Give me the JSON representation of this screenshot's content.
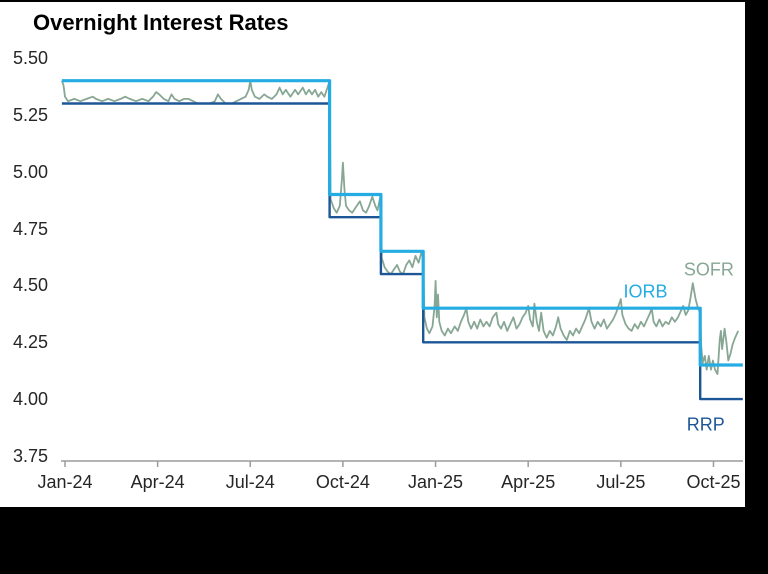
{
  "title": "Overnight Interest Rates",
  "colors": {
    "background": "#000000",
    "panel": "#FFFFFF",
    "title_text": "#000000",
    "tick_text": "#262626",
    "axis": "#9C9C9C",
    "sofr": "#87A794",
    "iorb": "#25ACE3",
    "rrp": "#1D5697"
  },
  "chart_data": {
    "type": "line",
    "title": "Overnight Interest Rates",
    "grid": false,
    "legend_position": "inline-labels",
    "x_epoch": "months since 2024-01-01",
    "x_range_months": [
      -0.1,
      22.0
    ],
    "x_tick_labels": [
      "Jan-24",
      "Apr-24",
      "Jul-24",
      "Oct-24",
      "Jan-25",
      "Apr-25",
      "Jul-25",
      "Oct-25"
    ],
    "x_tick_months": [
      0,
      3,
      6,
      9,
      12,
      15,
      18,
      21
    ],
    "ylim": [
      3.75,
      5.5
    ],
    "y_tick_labels": [
      "5.50",
      "5.25",
      "5.00",
      "4.75",
      "4.50",
      "4.25",
      "4.00",
      "3.75"
    ],
    "y_tick_values": [
      5.5,
      5.25,
      5.0,
      4.75,
      4.5,
      4.25,
      4.0,
      3.75
    ],
    "series": [
      {
        "name": "SOFR",
        "type": "line",
        "color": "#87A794",
        "stroke_width": 1.8,
        "points": [
          [
            -0.1,
            5.4
          ],
          [
            -0.05,
            5.38
          ],
          [
            0.0,
            5.33
          ],
          [
            0.1,
            5.31
          ],
          [
            0.3,
            5.32
          ],
          [
            0.5,
            5.31
          ],
          [
            0.7,
            5.32
          ],
          [
            0.9,
            5.33
          ],
          [
            1.0,
            5.32
          ],
          [
            1.2,
            5.31
          ],
          [
            1.4,
            5.32
          ],
          [
            1.6,
            5.31
          ],
          [
            1.8,
            5.32
          ],
          [
            1.95,
            5.33
          ],
          [
            2.1,
            5.32
          ],
          [
            2.3,
            5.31
          ],
          [
            2.5,
            5.32
          ],
          [
            2.7,
            5.31
          ],
          [
            2.85,
            5.33
          ],
          [
            2.95,
            5.35
          ],
          [
            3.05,
            5.34
          ],
          [
            3.2,
            5.32
          ],
          [
            3.35,
            5.31
          ],
          [
            3.45,
            5.34
          ],
          [
            3.55,
            5.32
          ],
          [
            3.7,
            5.31
          ],
          [
            3.85,
            5.32
          ],
          [
            4.0,
            5.32
          ],
          [
            4.15,
            5.31
          ],
          [
            4.3,
            5.3
          ],
          [
            4.5,
            5.3
          ],
          [
            4.7,
            5.3
          ],
          [
            4.85,
            5.31
          ],
          [
            4.95,
            5.34
          ],
          [
            5.05,
            5.32
          ],
          [
            5.2,
            5.3
          ],
          [
            5.4,
            5.3
          ],
          [
            5.55,
            5.31
          ],
          [
            5.7,
            5.32
          ],
          [
            5.85,
            5.33
          ],
          [
            5.95,
            5.36
          ],
          [
            6.0,
            5.4
          ],
          [
            6.05,
            5.36
          ],
          [
            6.15,
            5.33
          ],
          [
            6.3,
            5.32
          ],
          [
            6.45,
            5.34
          ],
          [
            6.55,
            5.33
          ],
          [
            6.7,
            5.32
          ],
          [
            6.85,
            5.34
          ],
          [
            6.95,
            5.37
          ],
          [
            7.05,
            5.34
          ],
          [
            7.15,
            5.36
          ],
          [
            7.3,
            5.33
          ],
          [
            7.45,
            5.36
          ],
          [
            7.55,
            5.34
          ],
          [
            7.7,
            5.37
          ],
          [
            7.8,
            5.34
          ],
          [
            7.9,
            5.36
          ],
          [
            8.0,
            5.34
          ],
          [
            8.1,
            5.36
          ],
          [
            8.2,
            5.33
          ],
          [
            8.3,
            5.35
          ],
          [
            8.4,
            5.33
          ],
          [
            8.5,
            5.37
          ],
          [
            8.57,
            5.4
          ],
          [
            8.6,
            4.88
          ],
          [
            8.7,
            4.84
          ],
          [
            8.8,
            4.82
          ],
          [
            8.9,
            4.85
          ],
          [
            8.97,
            4.97
          ],
          [
            9.0,
            5.04
          ],
          [
            9.05,
            4.92
          ],
          [
            9.1,
            4.85
          ],
          [
            9.2,
            4.83
          ],
          [
            9.3,
            4.82
          ],
          [
            9.45,
            4.85
          ],
          [
            9.55,
            4.87
          ],
          [
            9.65,
            4.83
          ],
          [
            9.75,
            4.82
          ],
          [
            9.85,
            4.85
          ],
          [
            9.95,
            4.89
          ],
          [
            10.05,
            4.85
          ],
          [
            10.12,
            4.83
          ],
          [
            10.18,
            4.87
          ],
          [
            10.23,
            4.9
          ],
          [
            10.26,
            4.62
          ],
          [
            10.35,
            4.58
          ],
          [
            10.45,
            4.56
          ],
          [
            10.55,
            4.55
          ],
          [
            10.65,
            4.57
          ],
          [
            10.75,
            4.59
          ],
          [
            10.85,
            4.56
          ],
          [
            10.95,
            4.55
          ],
          [
            11.05,
            4.59
          ],
          [
            11.15,
            4.61
          ],
          [
            11.25,
            4.58
          ],
          [
            11.35,
            4.63
          ],
          [
            11.45,
            4.6
          ],
          [
            11.55,
            4.65
          ],
          [
            11.6,
            4.62
          ],
          [
            11.64,
            4.36
          ],
          [
            11.72,
            4.31
          ],
          [
            11.8,
            4.29
          ],
          [
            11.9,
            4.32
          ],
          [
            11.97,
            4.41
          ],
          [
            12.0,
            4.52
          ],
          [
            12.04,
            4.36
          ],
          [
            12.08,
            4.46
          ],
          [
            12.12,
            4.34
          ],
          [
            12.2,
            4.3
          ],
          [
            12.3,
            4.28
          ],
          [
            12.4,
            4.31
          ],
          [
            12.5,
            4.29
          ],
          [
            12.62,
            4.32
          ],
          [
            12.72,
            4.3
          ],
          [
            12.82,
            4.34
          ],
          [
            12.92,
            4.37
          ],
          [
            13.0,
            4.4
          ],
          [
            13.06,
            4.34
          ],
          [
            13.15,
            4.31
          ],
          [
            13.25,
            4.34
          ],
          [
            13.35,
            4.31
          ],
          [
            13.45,
            4.35
          ],
          [
            13.55,
            4.32
          ],
          [
            13.65,
            4.34
          ],
          [
            13.75,
            4.32
          ],
          [
            13.85,
            4.36
          ],
          [
            13.97,
            4.38
          ],
          [
            14.03,
            4.33
          ],
          [
            14.12,
            4.31
          ],
          [
            14.22,
            4.34
          ],
          [
            14.32,
            4.3
          ],
          [
            14.42,
            4.33
          ],
          [
            14.52,
            4.36
          ],
          [
            14.62,
            4.31
          ],
          [
            14.72,
            4.33
          ],
          [
            14.82,
            4.36
          ],
          [
            14.92,
            4.38
          ],
          [
            15.0,
            4.41
          ],
          [
            15.06,
            4.35
          ],
          [
            15.15,
            4.32
          ],
          [
            15.2,
            4.42
          ],
          [
            15.28,
            4.34
          ],
          [
            15.35,
            4.3
          ],
          [
            15.42,
            4.38
          ],
          [
            15.5,
            4.3
          ],
          [
            15.6,
            4.27
          ],
          [
            15.7,
            4.3
          ],
          [
            15.8,
            4.28
          ],
          [
            15.9,
            4.32
          ],
          [
            15.97,
            4.36
          ],
          [
            16.05,
            4.31
          ],
          [
            16.15,
            4.28
          ],
          [
            16.25,
            4.26
          ],
          [
            16.35,
            4.3
          ],
          [
            16.45,
            4.28
          ],
          [
            16.55,
            4.31
          ],
          [
            16.65,
            4.29
          ],
          [
            16.75,
            4.32
          ],
          [
            16.85,
            4.35
          ],
          [
            16.97,
            4.4
          ],
          [
            17.05,
            4.34
          ],
          [
            17.15,
            4.31
          ],
          [
            17.25,
            4.34
          ],
          [
            17.35,
            4.32
          ],
          [
            17.45,
            4.35
          ],
          [
            17.55,
            4.31
          ],
          [
            17.65,
            4.33
          ],
          [
            17.75,
            4.35
          ],
          [
            17.85,
            4.38
          ],
          [
            17.95,
            4.42
          ],
          [
            18.0,
            4.44
          ],
          [
            18.05,
            4.37
          ],
          [
            18.15,
            4.33
          ],
          [
            18.25,
            4.31
          ],
          [
            18.35,
            4.3
          ],
          [
            18.45,
            4.33
          ],
          [
            18.55,
            4.31
          ],
          [
            18.65,
            4.34
          ],
          [
            18.75,
            4.32
          ],
          [
            18.85,
            4.35
          ],
          [
            18.95,
            4.38
          ],
          [
            19.0,
            4.4
          ],
          [
            19.06,
            4.34
          ],
          [
            19.15,
            4.32
          ],
          [
            19.25,
            4.35
          ],
          [
            19.35,
            4.32
          ],
          [
            19.45,
            4.34
          ],
          [
            19.55,
            4.33
          ],
          [
            19.65,
            4.36
          ],
          [
            19.75,
            4.34
          ],
          [
            19.85,
            4.36
          ],
          [
            19.95,
            4.39
          ],
          [
            20.02,
            4.41
          ],
          [
            20.1,
            4.37
          ],
          [
            20.18,
            4.39
          ],
          [
            20.25,
            4.44
          ],
          [
            20.33,
            4.51
          ],
          [
            20.42,
            4.44
          ],
          [
            20.5,
            4.4
          ],
          [
            20.57,
            4.38
          ],
          [
            20.6,
            4.24
          ],
          [
            20.65,
            4.16
          ],
          [
            20.72,
            4.19
          ],
          [
            20.78,
            4.13
          ],
          [
            20.85,
            4.19
          ],
          [
            20.92,
            4.13
          ],
          [
            20.98,
            4.17
          ],
          [
            21.05,
            4.13
          ],
          [
            21.13,
            4.11
          ],
          [
            21.2,
            4.26
          ],
          [
            21.24,
            4.3
          ],
          [
            21.28,
            4.22
          ],
          [
            21.36,
            4.31
          ],
          [
            21.42,
            4.25
          ],
          [
            21.48,
            4.17
          ],
          [
            21.55,
            4.2
          ],
          [
            21.62,
            4.24
          ],
          [
            21.7,
            4.27
          ],
          [
            21.8,
            4.3
          ]
        ]
      },
      {
        "name": "RRP",
        "type": "step",
        "color": "#1D5697",
        "stroke_width": 2.4,
        "end_month": 21.95,
        "steps": [
          [
            -0.1,
            5.3
          ],
          [
            8.57,
            4.8
          ],
          [
            10.23,
            4.55
          ],
          [
            11.6,
            4.25
          ],
          [
            20.57,
            4.0
          ]
        ]
      },
      {
        "name": "IORB",
        "type": "step",
        "color": "#25ACE3",
        "stroke_width": 3.2,
        "end_month": 21.95,
        "steps": [
          [
            -0.1,
            5.4
          ],
          [
            8.57,
            4.9
          ],
          [
            10.23,
            4.65
          ],
          [
            11.6,
            4.4
          ],
          [
            20.57,
            4.15
          ]
        ]
      }
    ],
    "annotations": [
      {
        "text": "SOFR",
        "series": "SOFR",
        "month": 20.85,
        "value": 4.57
      },
      {
        "text": "IORB",
        "series": "IORB",
        "month": 18.8,
        "value": 4.47
      },
      {
        "text": "RRP",
        "series": "RRP",
        "month": 20.75,
        "value": 3.885
      }
    ]
  }
}
